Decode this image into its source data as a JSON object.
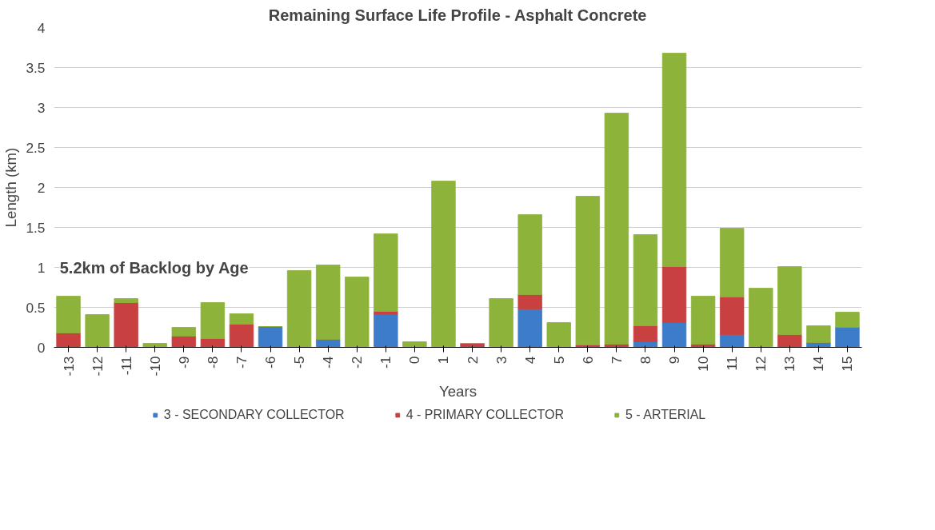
{
  "chart_data": {
    "type": "bar",
    "title": "Remaining Surface Life Profile - Asphalt Concrete",
    "xlabel": "Years",
    "ylabel": "Length (km)",
    "categories": [
      "-13",
      "-12",
      "-11",
      "-10",
      "-9",
      "-8",
      "-7",
      "-6",
      "-5",
      "-4",
      "-2",
      "-1",
      "0",
      "1",
      "2",
      "3",
      "4",
      "5",
      "6",
      "7",
      "8",
      "9",
      "10",
      "11",
      "12",
      "13",
      "14",
      "15"
    ],
    "stacked": true,
    "series": [
      {
        "name": "3 - SECONDARY COLLECTOR",
        "color": "#3d7cc9",
        "values": [
          0,
          0,
          null,
          0,
          0,
          0,
          0,
          0.26,
          0,
          0.1,
          0,
          0.41,
          0,
          0,
          0,
          0,
          0.48,
          0,
          0,
          0,
          0.07,
          0.31,
          0,
          0.16,
          0,
          0,
          0.06,
          0.25
        ]
      },
      {
        "name": "4 - PRIMARY COLLECTOR",
        "color": "#c94040",
        "values": [
          0.18,
          0,
          0.56,
          0,
          0.14,
          0.11,
          0.29,
          0,
          0,
          0,
          0,
          0.04,
          0,
          0,
          0.05,
          0,
          0.18,
          0,
          0.03,
          0.04,
          0.2,
          0.7,
          0.04,
          0.47,
          0,
          0.16,
          0,
          0
        ]
      },
      {
        "name": "5 - ARTERIAL",
        "color": "#8db33a",
        "values": [
          0.46,
          0.41,
          0.05,
          0.05,
          0.11,
          0.45,
          0.13,
          0,
          0.96,
          0.93,
          0.88,
          0.97,
          0.07,
          2.08,
          0,
          0.61,
          1.0,
          0.31,
          1.86,
          2.89,
          1.14,
          2.67,
          0.6,
          0.86,
          0.74,
          0.85,
          0.21,
          0.19
        ]
      }
    ],
    "ylim": [
      0,
      4
    ],
    "yticks": [
      0,
      0.5,
      1,
      1.5,
      2,
      2.5,
      3,
      3.5,
      4
    ],
    "grid": "y",
    "legend": "bottom",
    "annotations": [
      "5.2km of Backlog by Age"
    ]
  }
}
